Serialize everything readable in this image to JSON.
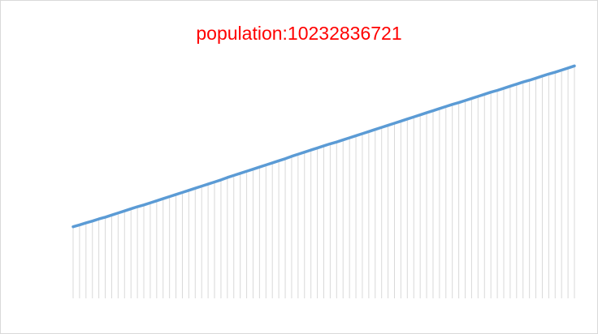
{
  "chart_data": {
    "type": "line",
    "title": "population:10232836721",
    "xlabel": "",
    "ylabel": "",
    "line_color": "#5b9bd5",
    "drop_line_color": "#d9d9d9",
    "title_color": "#ff0000",
    "grid": false,
    "legend": "none",
    "drop_lines": true,
    "ylim": [
      0,
      100
    ],
    "values": [
      24.0,
      24.6,
      25.3,
      25.9,
      26.6,
      27.2,
      27.9,
      28.6,
      29.3,
      30.0,
      30.7,
      31.3,
      32.0,
      32.7,
      33.4,
      34.1,
      34.8,
      35.5,
      36.2,
      36.9,
      37.6,
      38.3,
      39.0,
      39.7,
      40.5,
      41.2,
      41.9,
      42.6,
      43.3,
      44.0,
      44.7,
      45.4,
      46.1,
      46.8,
      47.6,
      48.3,
      49.0,
      49.7,
      50.4,
      51.1,
      51.8,
      52.4,
      53.1,
      53.8,
      54.5,
      55.2,
      55.9,
      56.6,
      57.3,
      58.0,
      58.7,
      59.4,
      60.1,
      60.8,
      61.5,
      62.2,
      62.9,
      63.6,
      64.3,
      65.0,
      65.6,
      66.3,
      67.0,
      67.7,
      68.4,
      69.1,
      69.7,
      70.4,
      71.1,
      71.8,
      72.5,
      73.1,
      73.8,
      74.5,
      75.2,
      75.8,
      76.5,
      77.2,
      77.9
    ]
  }
}
